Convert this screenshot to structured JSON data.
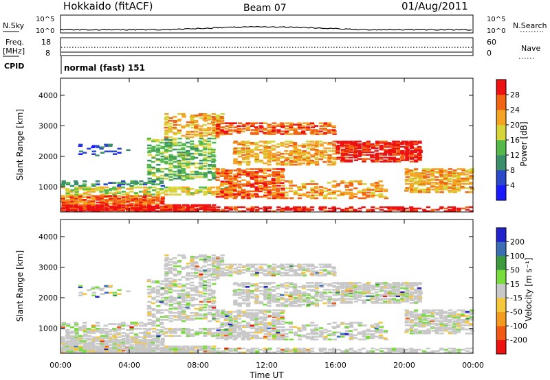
{
  "header": {
    "station": "Hokkaido (fitACF)",
    "beam": "Beam 07",
    "date": "01/Aug/2011"
  },
  "top_panels": {
    "nsky_label": "N.Sky",
    "nsky_ticks": [
      "10^5",
      "10^0"
    ],
    "nsearch_ticks": [
      "10^5",
      "10^0"
    ],
    "nsearch_label": "N.Search",
    "freq_label": "Freq.",
    "freq_unit": "[MHz]",
    "freq_ticks": [
      "18",
      "8"
    ],
    "nave_ticks": [
      "60",
      "0"
    ],
    "nave_label": "Nave",
    "cpid_label": "CPID",
    "cpid_text": "normal (fast) 151"
  },
  "chart_data": [
    {
      "type": "heatmap",
      "title": "Power",
      "ylabel": "Slant Range [km]",
      "xlabel": "",
      "yticks": [
        "1000",
        "2000",
        "3000",
        "4000"
      ],
      "ylim": [
        180,
        4560
      ],
      "colorbar_label": "Power [dB]",
      "colorbar_ticks": [
        "4",
        "8",
        "12",
        "16",
        "20",
        "24",
        "28"
      ],
      "colorbar_colors": [
        "#1a1aff",
        "#2a48c8",
        "#3a8f6a",
        "#55b84a",
        "#d7d43a",
        "#f5a322",
        "#f06414",
        "#ee1111"
      ]
    },
    {
      "type": "heatmap",
      "title": "Velocity",
      "ylabel": "Slant Range [km]",
      "xlabel": "Time UT",
      "xticks": [
        "00:00",
        "04:00",
        "08:00",
        "12:00",
        "16:00",
        "20:00",
        "00:00"
      ],
      "yticks": [
        "1000",
        "2000",
        "3000",
        "4000"
      ],
      "ylim": [
        180,
        4560
      ],
      "colorbar_label": "Velocity [m s⁻¹]",
      "colorbar_ticks": [
        "200",
        "100",
        "50",
        "15",
        "-15",
        "-50",
        "-100",
        "-200"
      ],
      "colorbar_colors": [
        "#2222cc",
        "#3c6eb4",
        "#3c9a3c",
        "#78dc3c",
        "#c8c8c8",
        "#f5c83c",
        "#f59a20",
        "#f05a14",
        "#ee1111"
      ]
    }
  ]
}
